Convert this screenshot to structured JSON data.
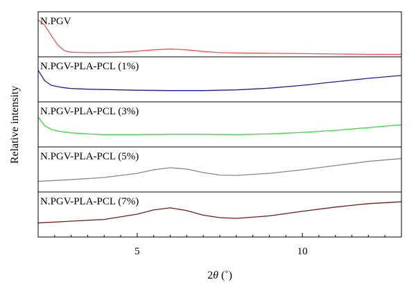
{
  "chart_data": {
    "type": "line",
    "xlabel_prefix": "2",
    "xlabel_symbol": "θ",
    "xlabel_unit": " (˚)",
    "ylabel": "Relative intensity",
    "xlim": [
      2,
      13
    ],
    "x_ticks": [
      5,
      10
    ],
    "x_tick_labels": [
      "5",
      "10"
    ],
    "grid": false,
    "series": [
      {
        "name": "N.PGV",
        "color": "#ff4d4d",
        "x": [
          2.0,
          2.2,
          2.4,
          2.6,
          2.8,
          3.0,
          3.5,
          4.0,
          4.5,
          5.0,
          5.5,
          6.0,
          6.5,
          7.0,
          7.5,
          8.0,
          9.0,
          10.0,
          11.0,
          12.0,
          13.0
        ],
        "y": [
          1.0,
          0.85,
          0.55,
          0.28,
          0.12,
          0.08,
          0.07,
          0.07,
          0.08,
          0.11,
          0.15,
          0.17,
          0.15,
          0.1,
          0.07,
          0.06,
          0.05,
          0.04,
          0.03,
          0.02,
          0.02
        ]
      },
      {
        "name": "N.PGV-PLA-PCL (1%)",
        "color": "#1a1ab8",
        "x": [
          2.0,
          2.2,
          2.4,
          2.6,
          2.8,
          3.0,
          3.5,
          4.0,
          5.0,
          6.0,
          7.0,
          8.0,
          9.0,
          10.0,
          11.0,
          12.0,
          13.0
        ],
        "y": [
          0.85,
          0.55,
          0.42,
          0.38,
          0.35,
          0.33,
          0.31,
          0.3,
          0.28,
          0.27,
          0.27,
          0.29,
          0.34,
          0.42,
          0.52,
          0.62,
          0.7
        ]
      },
      {
        "name": "N.PGV-PLA-PCL (3%)",
        "color": "#33dd33",
        "x": [
          2.0,
          2.2,
          2.4,
          2.6,
          3.0,
          3.5,
          4.0,
          5.0,
          6.0,
          7.0,
          8.0,
          9.0,
          10.0,
          11.0,
          12.0,
          13.0
        ],
        "y": [
          0.8,
          0.55,
          0.45,
          0.4,
          0.35,
          0.32,
          0.3,
          0.3,
          0.31,
          0.31,
          0.3,
          0.32,
          0.36,
          0.42,
          0.5,
          0.58
        ]
      },
      {
        "name": "N.PGV-PLA-PCL (5%)",
        "color": "#888888",
        "x": [
          2.0,
          3.0,
          4.0,
          5.0,
          5.5,
          6.0,
          6.5,
          7.0,
          7.5,
          8.0,
          9.0,
          10.0,
          11.0,
          12.0,
          13.0
        ],
        "y": [
          0.25,
          0.3,
          0.36,
          0.48,
          0.58,
          0.64,
          0.6,
          0.5,
          0.43,
          0.42,
          0.48,
          0.58,
          0.7,
          0.82,
          0.9
        ]
      },
      {
        "name": "N.PGV-PLA-PCL (7%)",
        "color": "#7a1818",
        "x": [
          2.0,
          3.0,
          4.0,
          5.0,
          5.5,
          6.0,
          6.5,
          7.0,
          7.5,
          8.0,
          9.0,
          10.0,
          11.0,
          12.0,
          13.0
        ],
        "y": [
          0.35,
          0.4,
          0.45,
          0.6,
          0.72,
          0.78,
          0.7,
          0.57,
          0.5,
          0.48,
          0.55,
          0.68,
          0.8,
          0.9,
          0.95
        ]
      }
    ]
  }
}
